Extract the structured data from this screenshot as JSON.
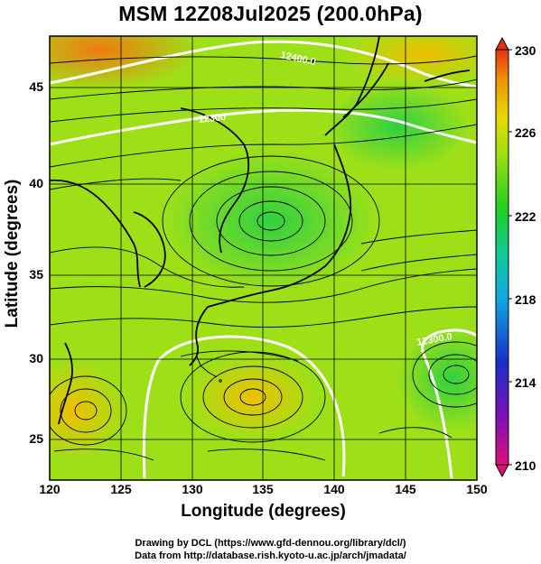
{
  "title": "MSM 12Z08Jul2025 (200.0hPa)",
  "axes": {
    "x_label": "Longitude (degrees)",
    "y_label": "Latitude  (degrees)",
    "x_ticks": [
      "120",
      "125",
      "130",
      "135",
      "140",
      "145",
      "150"
    ],
    "y_ticks": [
      "25",
      "30",
      "35",
      "40",
      "45"
    ]
  },
  "colorbar": {
    "ticks": [
      "230",
      "226",
      "222",
      "218",
      "214",
      "210"
    ],
    "colors": [
      "#e01078",
      "#7a10b8",
      "#1830c8",
      "#10a8e0",
      "#10c8a0",
      "#20d020",
      "#a0e010",
      "#e8d800",
      "#f09000",
      "#e83010"
    ]
  },
  "contour_labels": [
    "12400.0",
    "12300",
    "12300.0"
  ],
  "credits": {
    "line1": "Drawing by DCL (https://www.gfd-dennou.org/library/dcl/)",
    "line2": "Data from http://database.rish.kyoto-u.ac.jp/arch/jmadata/"
  }
}
